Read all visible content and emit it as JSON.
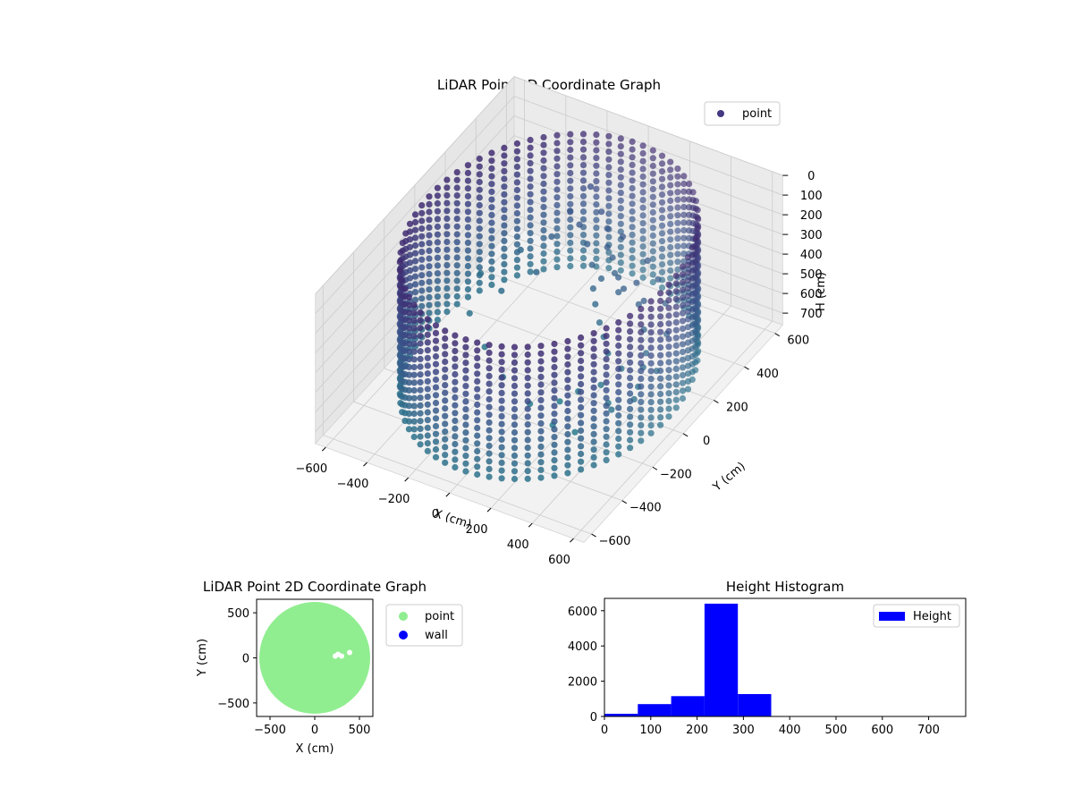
{
  "figure": {
    "background": "#ffffff"
  },
  "chart_data": [
    {
      "type": "scatter",
      "projection": "3d",
      "title": "LiDAR Point 3D Coordinate Graph",
      "xlabel": "X (cm)",
      "ylabel": "Y (cm)",
      "zlabel": "H (cm)",
      "xlim": [
        -650,
        650
      ],
      "ylim": [
        -650,
        650
      ],
      "zlim": [
        0,
        760
      ],
      "z_inverted": true,
      "x_ticks": [
        -600,
        -400,
        -200,
        0,
        200,
        400,
        600
      ],
      "y_ticks": [
        -600,
        -400,
        -200,
        0,
        200,
        400,
        600
      ],
      "z_ticks": [
        0,
        100,
        200,
        300,
        400,
        500,
        600,
        700
      ],
      "x_tick_labels": [
        "−600",
        "−400",
        "−200",
        "0",
        "200",
        "400",
        "600"
      ],
      "y_tick_labels": [
        "−600",
        "−400",
        "−200",
        "0",
        "200",
        "400",
        "600"
      ],
      "z_tick_labels": [
        "0",
        "100",
        "200",
        "300",
        "400",
        "500",
        "600",
        "700"
      ],
      "grid": true,
      "legend": {
        "position": "upper-right",
        "entries": [
          "point"
        ]
      },
      "series": [
        {
          "name": "point",
          "color": "#453781",
          "colormap": "viridis",
          "shape": "cylindrical wall of rings plus interior clutter",
          "ring_radius": 580,
          "ring_height_range": [
            30,
            700
          ],
          "ring_count": 18,
          "clutter_points": [
            [
              -80,
              380,
              110
            ],
            [
              10,
              330,
              160
            ],
            [
              60,
              300,
              200
            ],
            [
              90,
              260,
              250
            ],
            [
              130,
              240,
              270
            ],
            [
              170,
              200,
              300
            ],
            [
              120,
              180,
              330
            ],
            [
              210,
              170,
              280
            ],
            [
              240,
              130,
              310
            ],
            [
              280,
              110,
              260
            ],
            [
              320,
              140,
              240
            ],
            [
              360,
              100,
              300
            ],
            [
              400,
              80,
              250
            ],
            [
              430,
              40,
              350
            ],
            [
              470,
              0,
              420
            ],
            [
              500,
              -60,
              430
            ],
            [
              520,
              -120,
              470
            ],
            [
              380,
              -40,
              500
            ],
            [
              300,
              -20,
              470
            ],
            [
              250,
              20,
              440
            ],
            [
              200,
              60,
              420
            ],
            [
              150,
              100,
              380
            ],
            [
              110,
              140,
              350
            ],
            [
              60,
              200,
              300
            ],
            [
              0,
              250,
              260
            ],
            [
              -60,
              280,
              210
            ],
            [
              -120,
              300,
              180
            ],
            [
              340,
              -120,
              530
            ],
            [
              260,
              -160,
              560
            ],
            [
              200,
              -200,
              600
            ],
            [
              420,
              -180,
              540
            ],
            [
              480,
              -240,
              500
            ],
            [
              560,
              -200,
              450
            ],
            [
              580,
              -80,
              400
            ],
            [
              540,
              40,
              330
            ],
            [
              460,
              140,
              290
            ],
            [
              380,
              200,
              250
            ],
            [
              300,
              240,
              220
            ],
            [
              150,
              280,
              190
            ],
            [
              -150,
              120,
              350
            ],
            [
              -260,
              40,
              420
            ],
            [
              -340,
              -60,
              480
            ],
            [
              -200,
              -150,
              520
            ],
            [
              -60,
              -220,
              560
            ],
            [
              100,
              -260,
              600
            ],
            [
              240,
              -300,
              620
            ],
            [
              370,
              -330,
              580
            ],
            [
              -420,
              120,
              460
            ],
            [
              -300,
              220,
              380
            ],
            [
              -180,
              260,
              300
            ]
          ]
        }
      ]
    },
    {
      "type": "scatter",
      "title": "LiDAR Point 2D Coordinate Graph",
      "xlabel": "X (cm)",
      "ylabel": "Y (cm)",
      "xlim": [
        -650,
        650
      ],
      "ylim": [
        -650,
        650
      ],
      "x_ticks": [
        -500,
        0,
        500
      ],
      "y_ticks": [
        -500,
        0,
        500
      ],
      "x_tick_labels": [
        "−500",
        "0",
        "500"
      ],
      "y_tick_labels": [
        "−500",
        "0",
        "500"
      ],
      "grid": false,
      "legend": {
        "position": "outside-right",
        "entries": [
          "point",
          "wall"
        ]
      },
      "series": [
        {
          "name": "point",
          "color": "#90ee90",
          "shape": "filled disc",
          "center": [
            0,
            0
          ],
          "radius": 620
        },
        {
          "name": "wall",
          "color": "#0000ff",
          "points": []
        }
      ],
      "gaps": [
        [
          260,
          40
        ],
        [
          300,
          20
        ],
        [
          390,
          60
        ],
        [
          230,
          20
        ]
      ]
    },
    {
      "type": "bar",
      "subtype": "histogram",
      "title": "Height Histogram",
      "xlabel": "",
      "ylabel": "",
      "xlim": [
        0,
        780
      ],
      "ylim": [
        0,
        6700
      ],
      "x_ticks": [
        0,
        100,
        200,
        300,
        400,
        500,
        600,
        700
      ],
      "y_ticks": [
        0,
        2000,
        4000,
        6000
      ],
      "x_tick_labels": [
        "0",
        "100",
        "200",
        "300",
        "400",
        "500",
        "600",
        "700"
      ],
      "y_tick_labels": [
        "0",
        "2000",
        "4000",
        "6000"
      ],
      "grid": false,
      "legend": {
        "position": "upper-right",
        "entries": [
          "Height"
        ]
      },
      "bin_edges": [
        0,
        72,
        144,
        216,
        288,
        360,
        432,
        504,
        576,
        648,
        720,
        780
      ],
      "series": [
        {
          "name": "Height",
          "color": "#0000ff",
          "values": [
            150,
            700,
            1150,
            6400,
            1270,
            0,
            0,
            0,
            0,
            0,
            0
          ]
        }
      ]
    }
  ]
}
